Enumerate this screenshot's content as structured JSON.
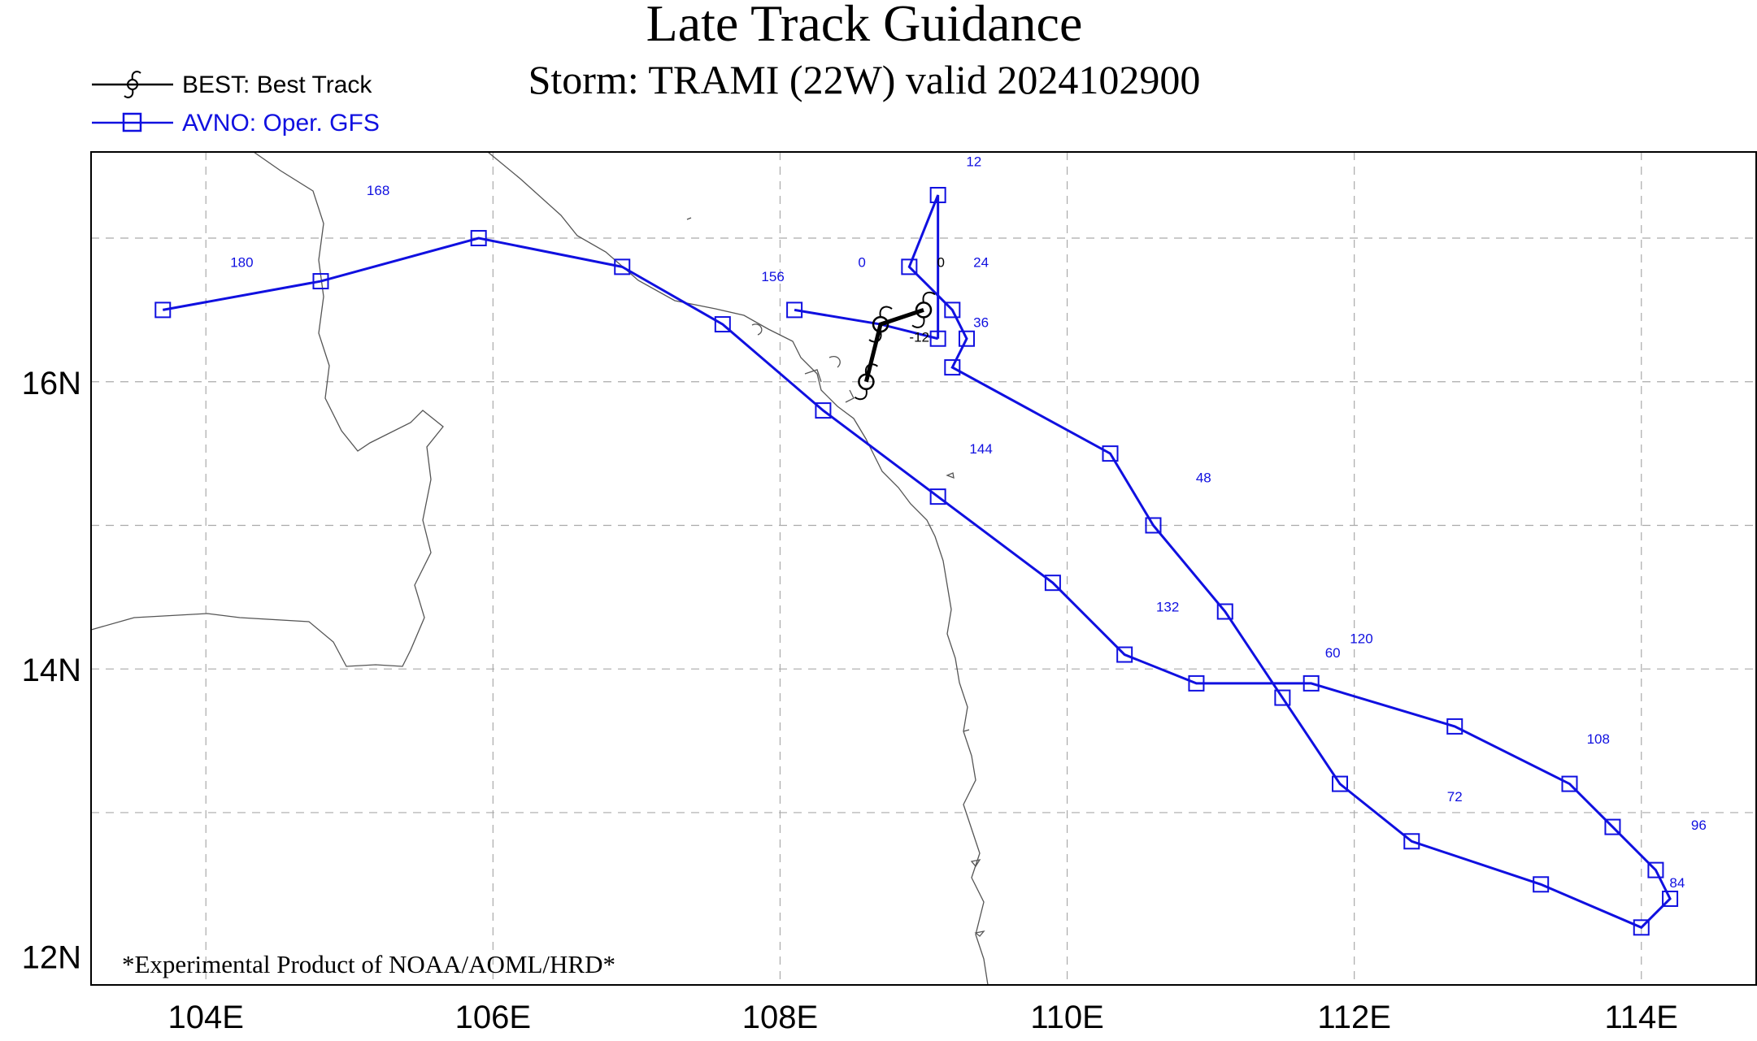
{
  "title": "Late Track Guidance",
  "subtitle": "Storm: TRAMI (22W) valid 2024102900",
  "footnote": "*Experimental Product of NOAA/AOML/HRD*",
  "colors": {
    "best": "#000000",
    "avno": "#1010e0",
    "coast": "#555555",
    "grid": "#aaaaaa"
  },
  "legend": [
    {
      "id": "best",
      "label": "BEST: Best Track",
      "marker": "hurricane-symbol"
    },
    {
      "id": "avno",
      "label": "AVNO: Oper. GFS",
      "marker": "square"
    }
  ],
  "map": {
    "lon_range": [
      103.2,
      114.8
    ],
    "lat_range": [
      11.8,
      17.6
    ],
    "x_ticks": [
      {
        "value": 104,
        "label": "104E"
      },
      {
        "value": 106,
        "label": "106E"
      },
      {
        "value": 108,
        "label": "108E"
      },
      {
        "value": 110,
        "label": "110E"
      },
      {
        "value": 112,
        "label": "112E"
      },
      {
        "value": 114,
        "label": "114E"
      }
    ],
    "y_ticks": [
      {
        "value": 12,
        "label": "12N"
      },
      {
        "value": 14,
        "label": "14N"
      },
      {
        "value": 16,
        "label": "16N"
      }
    ],
    "grid_lon": [
      104,
      106,
      108,
      110,
      112,
      114
    ],
    "grid_lat": [
      13,
      14,
      15,
      16,
      17
    ]
  },
  "tracks": {
    "best": {
      "name": "BEST: Best Track",
      "points": [
        {
          "hour": -12,
          "lon": 109.0,
          "lat": 16.5
        },
        {
          "hour": -6,
          "lon": 108.7,
          "lat": 16.4
        },
        {
          "hour": 0,
          "lon": 108.6,
          "lat": 16.0
        }
      ],
      "labels": [
        {
          "text": "-12",
          "lon": 108.97,
          "lat": 16.28
        },
        {
          "text": "0",
          "lon": 109.12,
          "lat": 16.8
        }
      ]
    },
    "avno": {
      "name": "AVNO: Oper. GFS",
      "points": [
        {
          "hour": 0,
          "lon": 109.1,
          "lat": 16.3
        },
        {
          "hour": 6,
          "lon": 109.1,
          "lat": 17.3
        },
        {
          "hour": 12,
          "lon": 108.9,
          "lat": 16.8
        },
        {
          "hour": 18,
          "lon": 109.2,
          "lat": 16.5
        },
        {
          "hour": 24,
          "lon": 109.3,
          "lat": 16.3
        },
        {
          "hour": 30,
          "lon": 109.2,
          "lat": 16.1
        },
        {
          "hour": 36,
          "lon": 110.3,
          "lat": 15.5
        },
        {
          "hour": 42,
          "lon": 110.6,
          "lat": 15.0
        },
        {
          "hour": 48,
          "lon": 111.1,
          "lat": 14.4
        },
        {
          "hour": 54,
          "lon": 111.5,
          "lat": 13.8
        },
        {
          "hour": 60,
          "lon": 111.9,
          "lat": 13.2
        },
        {
          "hour": 66,
          "lon": 112.4,
          "lat": 12.8
        },
        {
          "hour": 72,
          "lon": 113.3,
          "lat": 12.5
        },
        {
          "hour": 78,
          "lon": 114.0,
          "lat": 12.2
        },
        {
          "hour": 84,
          "lon": 114.2,
          "lat": 12.4
        },
        {
          "hour": 90,
          "lon": 114.1,
          "lat": 12.6
        },
        {
          "hour": 96,
          "lon": 113.8,
          "lat": 12.9
        },
        {
          "hour": 102,
          "lon": 113.5,
          "lat": 13.2
        },
        {
          "hour": 108,
          "lon": 112.7,
          "lat": 13.6
        },
        {
          "hour": 114,
          "lon": 111.7,
          "lat": 13.9
        },
        {
          "hour": 120,
          "lon": 110.9,
          "lat": 13.9
        },
        {
          "hour": 126,
          "lon": 110.4,
          "lat": 14.1
        },
        {
          "hour": 132,
          "lon": 109.9,
          "lat": 14.6
        },
        {
          "hour": 138,
          "lon": 109.1,
          "lat": 15.2
        },
        {
          "hour": 144,
          "lon": 108.3,
          "lat": 15.8
        },
        {
          "hour": 150,
          "lon": 107.6,
          "lat": 16.4
        },
        {
          "hour": 156,
          "lon": 106.9,
          "lat": 16.8
        },
        {
          "hour": 162,
          "lon": 105.9,
          "lat": 17.0
        },
        {
          "hour": 168,
          "lon": 104.8,
          "lat": 16.7
        },
        {
          "hour": 174,
          "lon": 103.7,
          "lat": 16.5
        }
      ],
      "extra_segment": [
        {
          "lon": 108.1,
          "lat": 16.5
        },
        {
          "lon": 108.7,
          "lat": 16.4
        },
        {
          "lon": 109.1,
          "lat": 16.3
        }
      ],
      "labels": [
        {
          "text": "12",
          "lon": 109.35,
          "lat": 17.5
        },
        {
          "text": "0",
          "lon": 108.57,
          "lat": 16.8
        },
        {
          "text": "24",
          "lon": 109.4,
          "lat": 16.8
        },
        {
          "text": "36",
          "lon": 109.4,
          "lat": 16.38
        },
        {
          "text": "156",
          "lon": 107.95,
          "lat": 16.7
        },
        {
          "text": "168",
          "lon": 105.2,
          "lat": 17.3
        },
        {
          "text": "180",
          "lon": 104.25,
          "lat": 16.8
        },
        {
          "text": "144",
          "lon": 109.4,
          "lat": 15.5
        },
        {
          "text": "48",
          "lon": 110.95,
          "lat": 15.3
        },
        {
          "text": "132",
          "lon": 110.7,
          "lat": 14.4
        },
        {
          "text": "60",
          "lon": 111.85,
          "lat": 14.08
        },
        {
          "text": "120",
          "lon": 112.05,
          "lat": 14.18
        },
        {
          "text": "108",
          "lon": 113.7,
          "lat": 13.48
        },
        {
          "text": "72",
          "lon": 112.7,
          "lat": 13.08
        },
        {
          "text": "96",
          "lon": 114.4,
          "lat": 12.88
        },
        {
          "text": "84",
          "lon": 114.25,
          "lat": 12.48
        }
      ]
    }
  }
}
